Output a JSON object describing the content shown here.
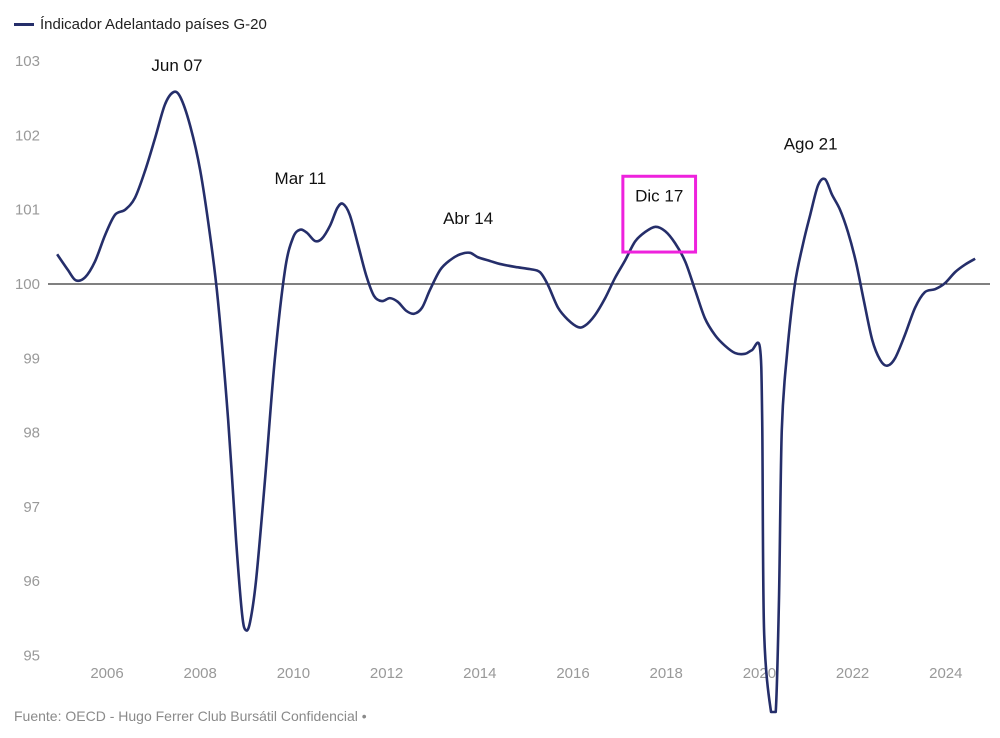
{
  "chart_data": {
    "type": "line",
    "title": "",
    "xlabel": "",
    "ylabel": "",
    "legend": {
      "position": "top-left",
      "entries": [
        "Índicador Adelantado países G-20"
      ]
    },
    "source": "Fuente: OECD - Hugo Ferrer Club Bursátil Confidencial •",
    "ylim": [
      95,
      103
    ],
    "xlim": [
      2004.9,
      2024.8
    ],
    "yticks": [
      "95",
      "96",
      "97",
      "98",
      "99",
      "100",
      "101",
      "102",
      "103"
    ],
    "xticks": [
      "2006",
      "2008",
      "2010",
      "2012",
      "2014",
      "2016",
      "2018",
      "2020",
      "2022",
      "2024"
    ],
    "reference_line": 100,
    "colors": {
      "series": "#252e6a",
      "reference": "#000000",
      "highlight": "#ee22dd"
    },
    "series": [
      {
        "name": "Índicador Adelantado países G-20",
        "x": [
          2004.93,
          2005.16,
          2005.33,
          2005.53,
          2005.74,
          2005.96,
          2006.17,
          2006.39,
          2006.6,
          2006.82,
          2007.03,
          2007.24,
          2007.42,
          2007.57,
          2007.78,
          2008.0,
          2008.21,
          2008.38,
          2008.6,
          2008.77,
          2008.9,
          2008.98,
          2009.07,
          2009.2,
          2009.39,
          2009.6,
          2009.82,
          2009.99,
          2010.14,
          2010.29,
          2010.46,
          2010.61,
          2010.79,
          2010.94,
          2011.06,
          2011.21,
          2011.39,
          2011.56,
          2011.73,
          2011.9,
          2012.07,
          2012.24,
          2012.42,
          2012.59,
          2012.76,
          2012.93,
          2013.15,
          2013.36,
          2013.58,
          2013.79,
          2013.96,
          2014.22,
          2014.43,
          2014.76,
          2015.08,
          2015.29,
          2015.46,
          2015.68,
          2015.89,
          2016.11,
          2016.26,
          2016.47,
          2016.69,
          2016.9,
          2017.12,
          2017.33,
          2017.55,
          2017.77,
          2017.98,
          2018.19,
          2018.41,
          2018.62,
          2018.83,
          2019.05,
          2019.26,
          2019.48,
          2019.69,
          2019.84,
          2020.01,
          2020.06,
          2020.1,
          2020.25,
          2020.35,
          2020.42,
          2020.48,
          2020.59,
          2020.76,
          2020.94,
          2021.09,
          2021.26,
          2021.41,
          2021.56,
          2021.73,
          2021.9,
          2022.07,
          2022.24,
          2022.42,
          2022.59,
          2022.74,
          2022.91,
          2023.12,
          2023.34,
          2023.55,
          2023.77,
          2023.98,
          2024.2,
          2024.41,
          2024.63
        ],
        "values": [
          100.4,
          100.19,
          100.05,
          100.09,
          100.3,
          100.66,
          100.93,
          101.0,
          101.16,
          101.53,
          101.96,
          102.41,
          102.58,
          102.52,
          102.14,
          101.53,
          100.66,
          99.78,
          98.17,
          96.55,
          95.55,
          95.34,
          95.45,
          96.02,
          97.36,
          98.98,
          100.19,
          100.62,
          100.73,
          100.69,
          100.58,
          100.61,
          100.79,
          101.02,
          101.08,
          100.93,
          100.52,
          100.12,
          99.84,
          99.77,
          99.81,
          99.76,
          99.64,
          99.6,
          99.68,
          99.92,
          100.19,
          100.32,
          100.4,
          100.42,
          100.36,
          100.31,
          100.27,
          100.23,
          100.2,
          100.16,
          99.99,
          99.68,
          99.52,
          99.42,
          99.44,
          99.58,
          99.81,
          100.08,
          100.32,
          100.57,
          100.7,
          100.77,
          100.71,
          100.55,
          100.3,
          99.92,
          99.54,
          99.31,
          99.17,
          99.07,
          99.06,
          99.11,
          99.15,
          98.17,
          95.34,
          93.3,
          93.6,
          95.75,
          98.03,
          99.04,
          99.99,
          100.55,
          100.93,
          101.33,
          101.41,
          101.2,
          101.0,
          100.7,
          100.3,
          99.78,
          99.25,
          98.98,
          98.9,
          99.0,
          99.31,
          99.68,
          99.89,
          99.93,
          100.01,
          100.16,
          100.26,
          100.34
        ]
      }
    ],
    "annotations": [
      {
        "text": "Jun 07",
        "x": 2007.5,
        "y": 102.95
      },
      {
        "text": "Mar 11",
        "x": 2010.15,
        "y": 101.43
      },
      {
        "text": "Abr 14",
        "x": 2013.75,
        "y": 100.89
      },
      {
        "text": "Dic 17",
        "x": 2017.85,
        "y": 101.19,
        "highlight": {
          "x": [
            2017.07,
            2018.63
          ],
          "y": [
            100.43,
            101.45
          ]
        }
      },
      {
        "text": "Ago 21",
        "x": 2021.1,
        "y": 101.89
      }
    ]
  }
}
